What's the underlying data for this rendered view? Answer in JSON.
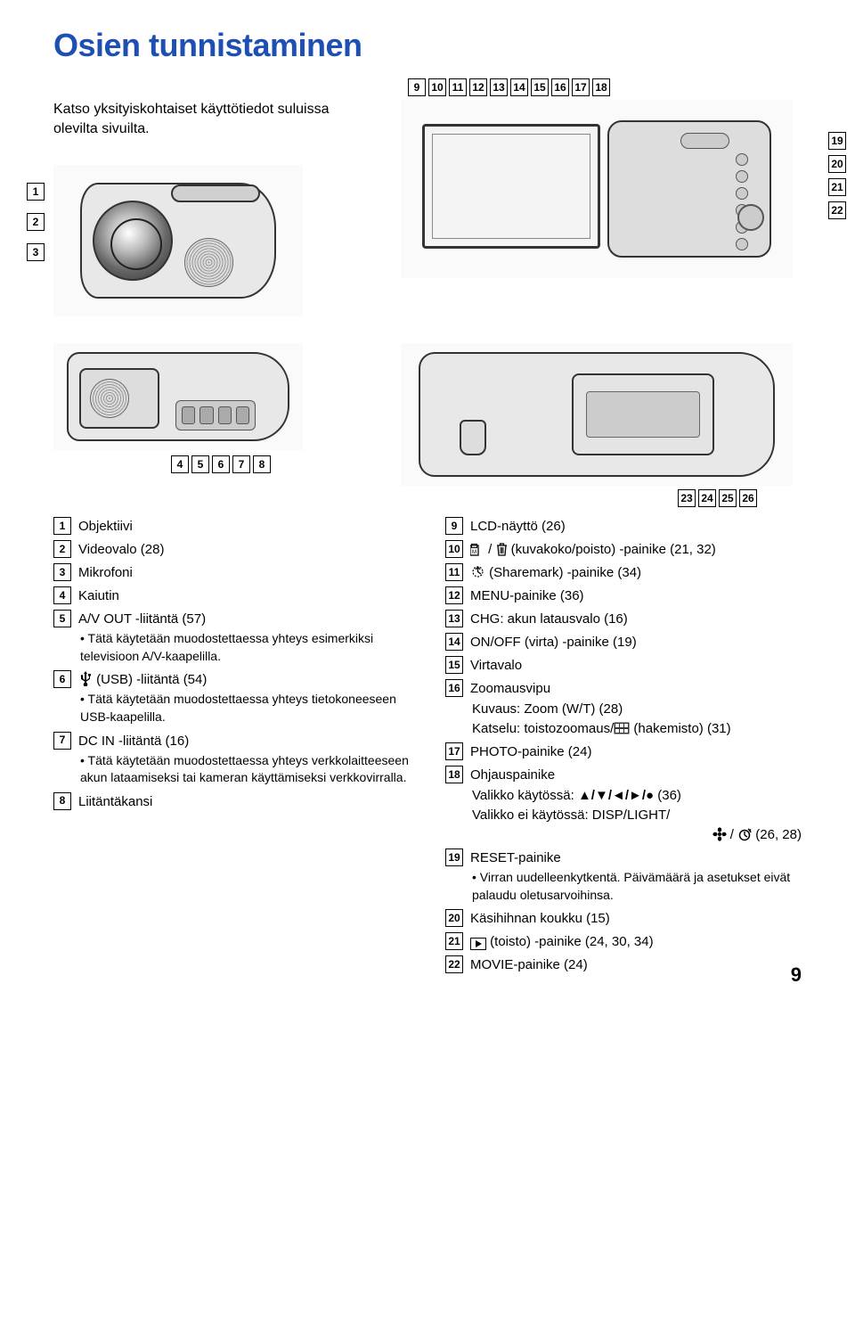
{
  "title": "Osien tunnistaminen",
  "intro": "Katso yksityiskohtaiset käyttötiedot suluissa olevilta sivuilta.",
  "page_number": "9",
  "callouts": {
    "left_vert": [
      "1",
      "2",
      "3"
    ],
    "top_right_row": [
      "9",
      "10",
      "11",
      "12",
      "13",
      "14",
      "15",
      "16",
      "17",
      "18"
    ],
    "right_side": [
      "19",
      "20",
      "21",
      "22"
    ],
    "bottom_right": [
      "23",
      "24",
      "25",
      "26"
    ],
    "below_cam3": [
      "4",
      "5",
      "6",
      "7",
      "8"
    ]
  },
  "left_col": [
    {
      "n": "1",
      "text": "Objektiivi"
    },
    {
      "n": "2",
      "text": "Videovalo (28)"
    },
    {
      "n": "3",
      "text": "Mikrofoni"
    },
    {
      "n": "4",
      "text": "Kaiutin"
    },
    {
      "n": "5",
      "text": "A/V OUT -liitäntä (57)",
      "sub": "Tätä käytetään muodostettaessa yhteys esimerkiksi televisioon A/V-kaapelilla."
    },
    {
      "n": "6",
      "text": "(USB) -liitäntä (54)",
      "icon": "usb",
      "sub": "Tätä käytetään muodostettaessa yhteys tietokoneeseen USB-kaapelilla."
    },
    {
      "n": "7",
      "text": "DC IN -liitäntä (16)",
      "sub": "Tätä käytetään muodostettaessa yhteys verkkolaitteeseen akun lataamiseksi tai kameran käyttämiseksi verkkovirralla."
    },
    {
      "n": "8",
      "text": "Liitäntäkansi"
    }
  ],
  "right_col": [
    {
      "n": "9",
      "text": "LCD-näyttö (26)"
    },
    {
      "n": "10",
      "text": "(kuvakoko/poisto) -painike (21, 32)",
      "icon": "imgsize-trash"
    },
    {
      "n": "11",
      "text": "(Sharemark) -painike (34)",
      "icon": "sharemark"
    },
    {
      "n": "12",
      "text": "MENU-painike (36)"
    },
    {
      "n": "13",
      "text": "CHG: akun latausvalo (16)"
    },
    {
      "n": "14",
      "text": "ON/OFF (virta) -painike (19)"
    },
    {
      "n": "15",
      "text": "Virtavalo"
    },
    {
      "n": "16",
      "text": "Zoomausvipu",
      "lines": [
        "Kuvaus: Zoom (W/T) (28)",
        {
          "pre": "Katselu: toistozoomaus/",
          "icon": "index",
          "post": " (hakemisto) (31)"
        }
      ]
    },
    {
      "n": "17",
      "text": "PHOTO-painike (24)"
    },
    {
      "n": "18",
      "text": "Ohjauspainike",
      "lines": [
        {
          "pre": "Valikko käytössä: ",
          "icon": "arrows",
          "post": " (36)"
        },
        {
          "pre": "Valikko ei käytössä: DISP/LIGHT/",
          "break": true
        },
        {
          "icon": "flower-timer",
          "post": " (26, 28)",
          "indent": true
        }
      ]
    },
    {
      "n": "19",
      "text": "RESET-painike",
      "sub": "Virran uudelleenkytkentä. Päivämäärä ja asetukset eivät palaudu oletusarvoihinsa."
    },
    {
      "n": "20",
      "text": "Käsihihnan koukku (15)"
    },
    {
      "n": "21",
      "text": "(toisto) -painike (24, 30, 34)",
      "icon": "play"
    },
    {
      "n": "22",
      "text": "MOVIE-painike (24)"
    }
  ]
}
